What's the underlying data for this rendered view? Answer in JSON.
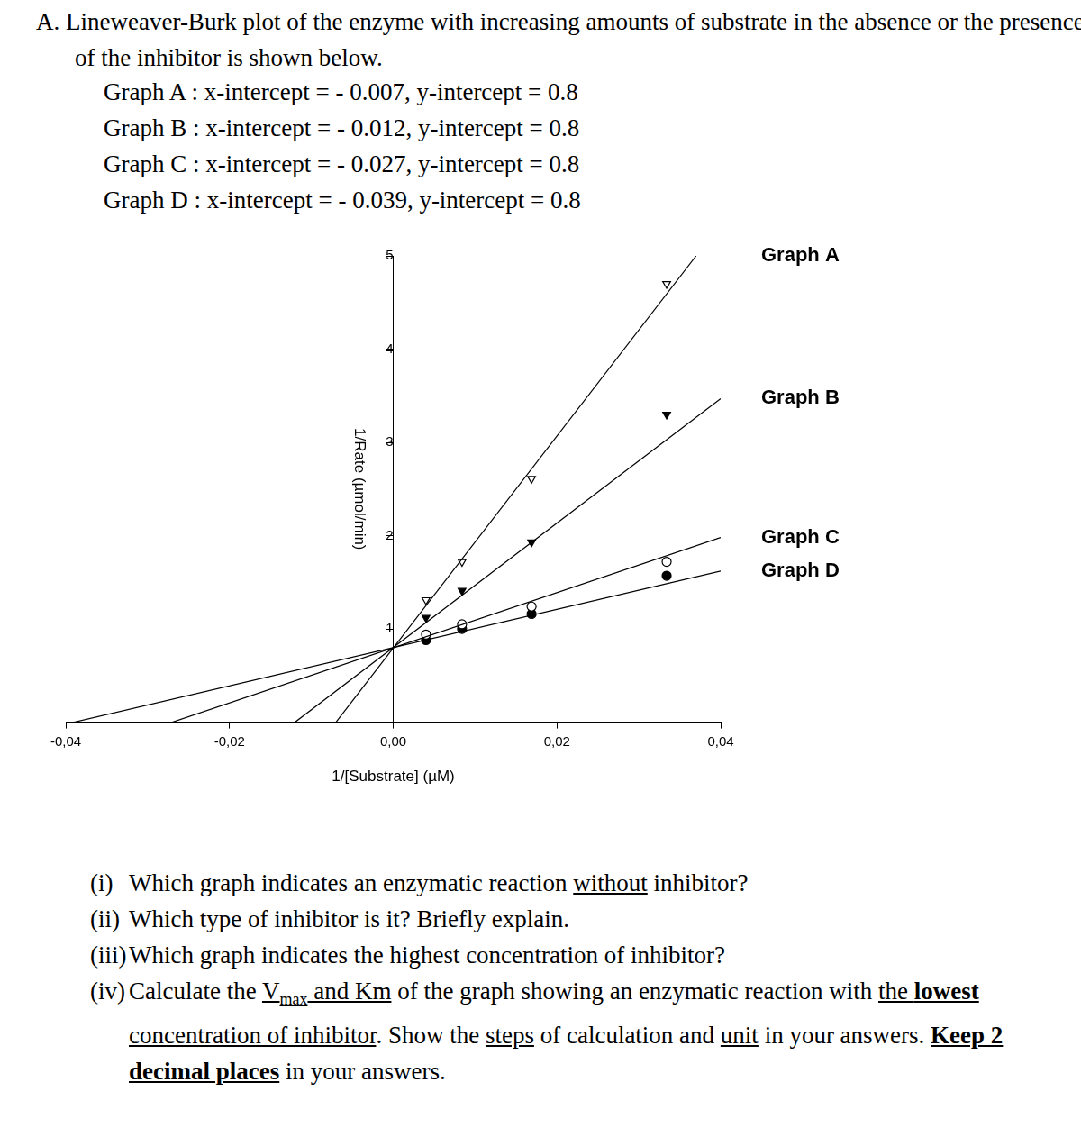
{
  "document": {
    "heading": "A. Lineweaver-Burk plot of the enzyme with increasing amounts of substrate in the absence or the presence of the inhibitor is shown below.",
    "intercepts": [
      "Graph A : x-intercept = - 0.007, y-intercept = 0.8",
      "Graph B : x-intercept = - 0.012, y-intercept = 0.8",
      "Graph C : x-intercept = - 0.027, y-intercept = 0.8",
      "Graph D : x-intercept = - 0.039, y-intercept = 0.8"
    ],
    "questions": [
      {
        "label": "(i)",
        "segments": [
          {
            "t": "Which graph indicates an enzymatic reaction "
          },
          {
            "t": "without",
            "u": true
          },
          {
            "t": " inhibitor?"
          }
        ]
      },
      {
        "label": "(ii)",
        "segments": [
          {
            "t": "Which type of inhibitor is it? Briefly explain."
          }
        ]
      },
      {
        "label": "(iii)",
        "segments": [
          {
            "t": "Which graph indicates the highest concentration of inhibitor?"
          }
        ]
      },
      {
        "label": "(iv)",
        "segments": [
          {
            "t": "Calculate the "
          },
          {
            "t": "V",
            "u": true
          },
          {
            "t": "max",
            "u": true,
            "sub": true
          },
          {
            "t": " and Km",
            "u": true
          },
          {
            "t": " of the graph showing an enzymatic reaction with "
          },
          {
            "t": "the ",
            "u": true
          },
          {
            "t": "lowest",
            "u": true,
            "b": true
          },
          {
            "t": " concentration of inhibitor",
            "u": true
          },
          {
            "t": ". Show the "
          },
          {
            "t": "steps",
            "u": true
          },
          {
            "t": " of calculation and "
          },
          {
            "t": "unit",
            "u": true
          },
          {
            "t": " in your answers. "
          },
          {
            "t": "Keep 2 decimal places",
            "u": true,
            "b": true
          },
          {
            "t": " in your answers."
          }
        ]
      }
    ]
  },
  "chart_data": {
    "type": "scatter",
    "xlabel": "1/[Substrate] (µM)",
    "ylabel": "1/Rate (µmol/min)",
    "xlim": [
      -0.04,
      0.04
    ],
    "xticks": [
      {
        "value": -0.04,
        "label": "-0,04"
      },
      {
        "value": -0.02,
        "label": "-0,02"
      },
      {
        "value": 0,
        "label": "0,00"
      },
      {
        "value": 0.02,
        "label": "0,02"
      },
      {
        "value": 0.04,
        "label": "0,04"
      }
    ],
    "ylim": [
      0,
      5
    ],
    "yticks": [
      1,
      2,
      3,
      4,
      5
    ],
    "grid": false,
    "series": [
      {
        "name": "Graph A",
        "color": "#000000",
        "marker": "triangle-down-open",
        "x": [
          0.004,
          0.0084,
          0.0169,
          0.0334
        ],
        "values": [
          1.31,
          1.72,
          2.61,
          4.7
        ],
        "fit_x": [
          -0.007,
          0.037
        ],
        "fit_y": [
          0,
          5.0
        ]
      },
      {
        "name": "Graph B",
        "color": "#000000",
        "marker": "triangle-down",
        "x": [
          0.004,
          0.0084,
          0.0169,
          0.0334
        ],
        "values": [
          1.12,
          1.41,
          1.93,
          3.3
        ],
        "fit_x": [
          -0.012,
          0.04
        ],
        "fit_y": [
          0,
          3.47
        ]
      },
      {
        "name": "Graph C",
        "color": "#000000",
        "marker": "circle-open",
        "x": [
          0.004,
          0.0084,
          0.0169,
          0.0334
        ],
        "values": [
          0.94,
          1.05,
          1.24,
          1.72
        ],
        "fit_x": [
          -0.027,
          0.04
        ],
        "fit_y": [
          0,
          1.98
        ]
      },
      {
        "name": "Graph D",
        "color": "#000000",
        "marker": "circle",
        "x": [
          0.004,
          0.0084,
          0.0169,
          0.0334
        ],
        "values": [
          0.88,
          1.0,
          1.16,
          1.57
        ],
        "fit_x": [
          -0.039,
          0.04
        ],
        "fit_y": [
          0,
          1.62
        ]
      }
    ]
  }
}
